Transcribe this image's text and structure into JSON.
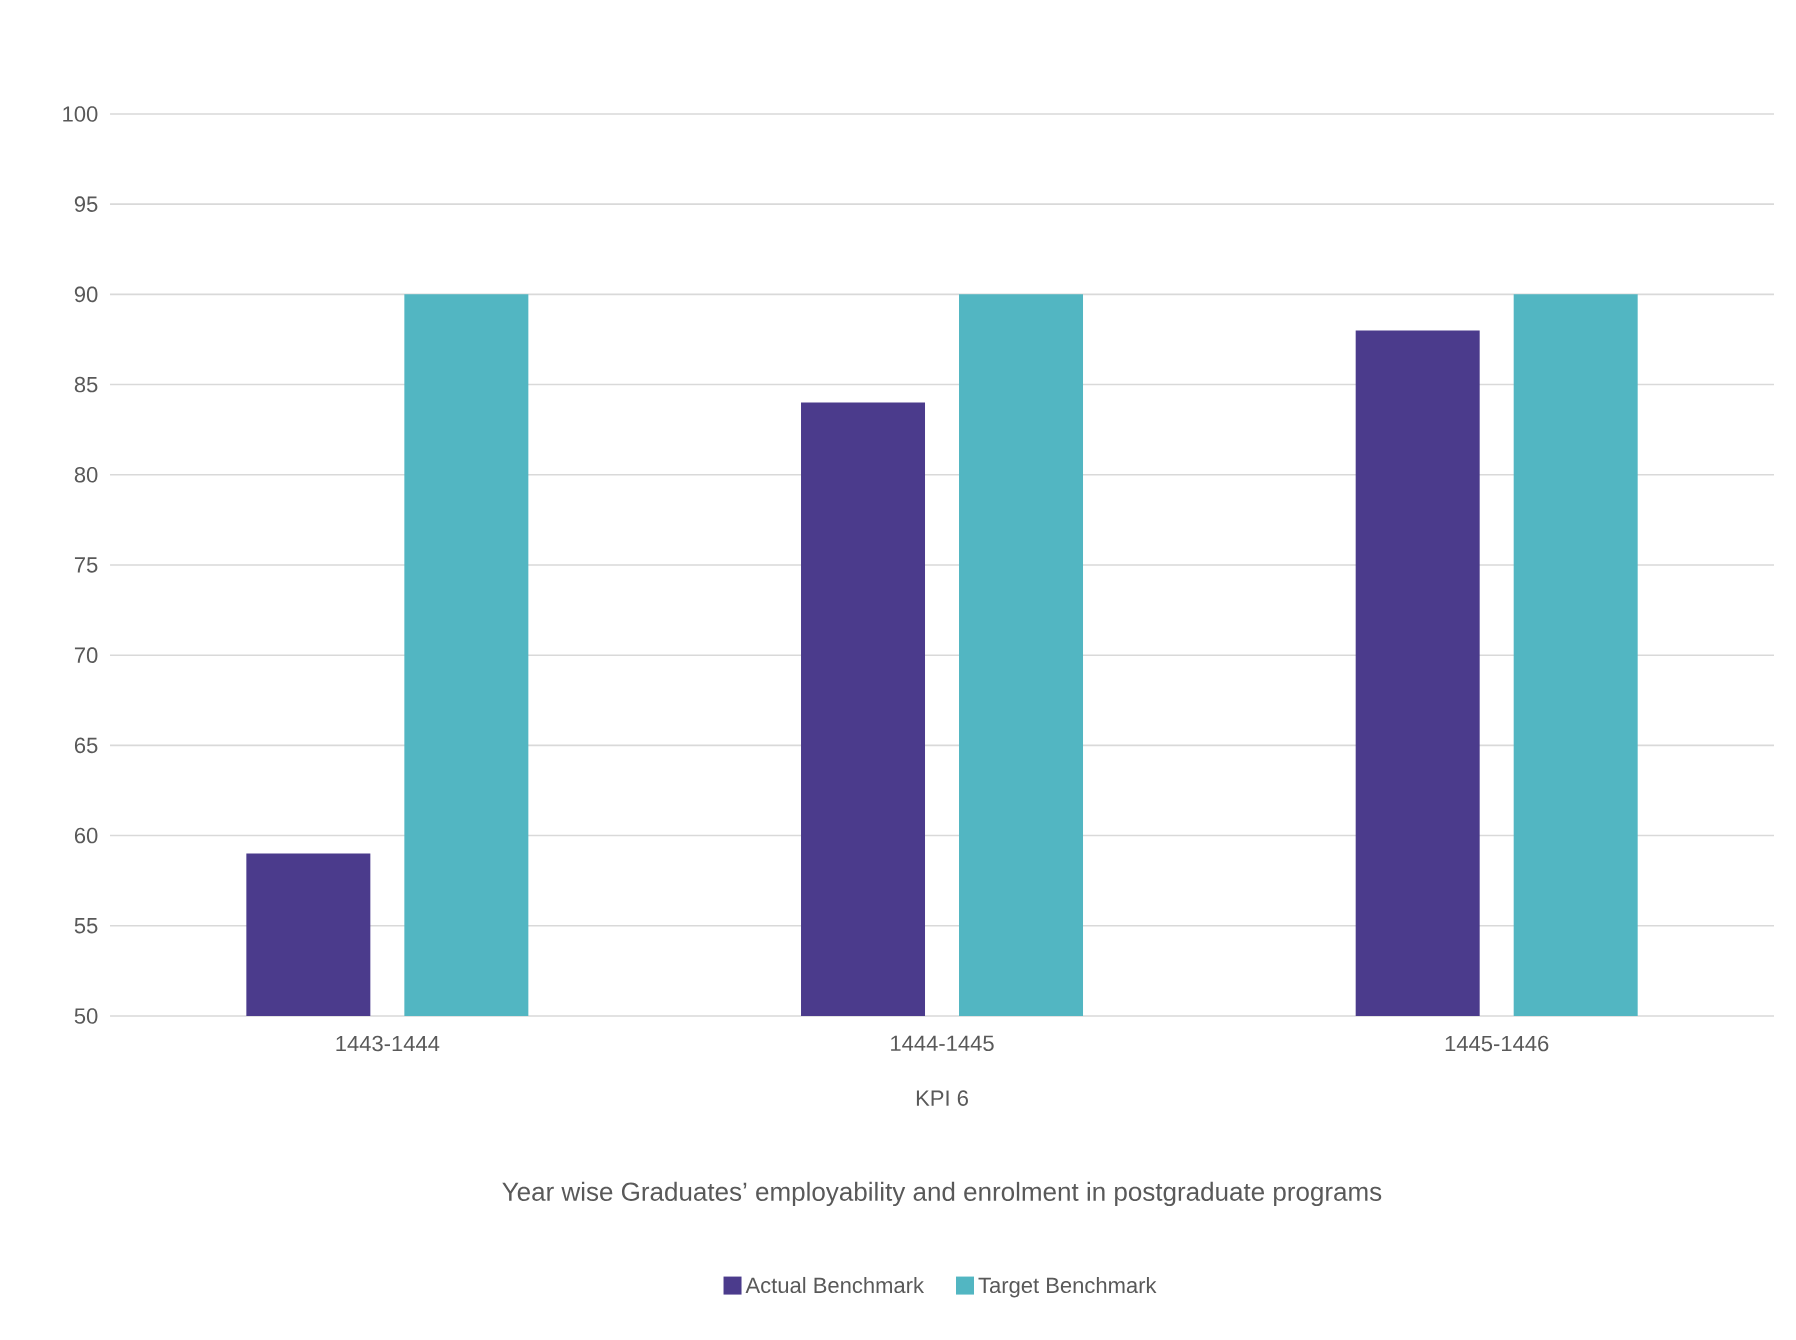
{
  "chart_data": {
    "type": "bar",
    "categories": [
      "1443-1444",
      "1444-1445",
      "1445-1446"
    ],
    "series": [
      {
        "name": "Actual Benchmark",
        "color": "#4b3b8c",
        "values": [
          59,
          84,
          88
        ]
      },
      {
        "name": "Target Benchmark",
        "color": "#52b6c2",
        "values": [
          90,
          90,
          90
        ]
      }
    ],
    "xlabel": "KPI 6",
    "annotations": [
      "Year wise Graduates’ employability and enrolment in postgraduate programs"
    ],
    "ylim": [
      50,
      100
    ],
    "yticks": [
      50,
      55,
      60,
      65,
      70,
      75,
      80,
      85,
      90,
      95,
      100
    ],
    "grid": "y",
    "legend": "bottom"
  }
}
